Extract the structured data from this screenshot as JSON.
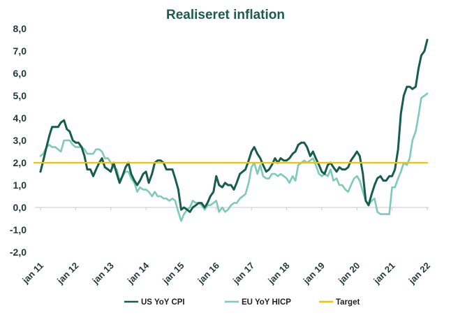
{
  "chart_data": {
    "type": "line",
    "title": "Realiseret inflation",
    "xlabel": "",
    "ylabel": "",
    "ylim": [
      -2.0,
      8.0
    ],
    "yticks": [
      "-2,0",
      "-1,0",
      "0,0",
      "1,0",
      "2,0",
      "3,0",
      "4,0",
      "5,0",
      "6,0",
      "7,0",
      "8,0"
    ],
    "xticks": [
      "jan 11",
      "jan 12",
      "jan 13",
      "jan 14",
      "jan 15",
      "jan 16",
      "jan 17",
      "jan 18",
      "jan 19",
      "jan 20",
      "jan 21",
      "jan 22"
    ],
    "xrange": [
      2011.0,
      2022.0
    ],
    "grid": false,
    "legend_position": "bottom",
    "series": [
      {
        "name": "US YoY CPI",
        "color": "#165c4f",
        "points": [
          [
            2011.0,
            1.6
          ],
          [
            2011.08,
            2.1
          ],
          [
            2011.17,
            2.7
          ],
          [
            2011.25,
            3.2
          ],
          [
            2011.33,
            3.6
          ],
          [
            2011.42,
            3.6
          ],
          [
            2011.5,
            3.6
          ],
          [
            2011.58,
            3.8
          ],
          [
            2011.67,
            3.9
          ],
          [
            2011.75,
            3.5
          ],
          [
            2011.83,
            3.4
          ],
          [
            2011.92,
            3.0
          ],
          [
            2012.0,
            2.9
          ],
          [
            2012.08,
            2.9
          ],
          [
            2012.17,
            2.7
          ],
          [
            2012.25,
            2.3
          ],
          [
            2012.33,
            1.7
          ],
          [
            2012.42,
            1.7
          ],
          [
            2012.5,
            1.4
          ],
          [
            2012.58,
            1.7
          ],
          [
            2012.67,
            2.0
          ],
          [
            2012.75,
            2.2
          ],
          [
            2012.83,
            1.8
          ],
          [
            2012.92,
            1.7
          ],
          [
            2013.0,
            1.6
          ],
          [
            2013.08,
            2.0
          ],
          [
            2013.17,
            1.5
          ],
          [
            2013.25,
            1.1
          ],
          [
            2013.33,
            1.4
          ],
          [
            2013.42,
            1.8
          ],
          [
            2013.5,
            2.0
          ],
          [
            2013.58,
            1.5
          ],
          [
            2013.67,
            1.2
          ],
          [
            2013.75,
            1.0
          ],
          [
            2013.83,
            1.2
          ],
          [
            2013.92,
            1.5
          ],
          [
            2014.0,
            1.6
          ],
          [
            2014.08,
            1.1
          ],
          [
            2014.17,
            1.5
          ],
          [
            2014.25,
            2.0
          ],
          [
            2014.33,
            2.1
          ],
          [
            2014.42,
            2.1
          ],
          [
            2014.5,
            2.0
          ],
          [
            2014.58,
            1.7
          ],
          [
            2014.67,
            1.7
          ],
          [
            2014.75,
            1.7
          ],
          [
            2014.83,
            1.3
          ],
          [
            2014.92,
            0.8
          ],
          [
            2015.0,
            -0.1
          ],
          [
            2015.08,
            0.0
          ],
          [
            2015.17,
            -0.1
          ],
          [
            2015.25,
            -0.2
          ],
          [
            2015.33,
            0.0
          ],
          [
            2015.42,
            0.1
          ],
          [
            2015.5,
            0.2
          ],
          [
            2015.58,
            0.2
          ],
          [
            2015.67,
            0.0
          ],
          [
            2015.75,
            0.2
          ],
          [
            2015.83,
            0.5
          ],
          [
            2015.92,
            0.7
          ],
          [
            2016.0,
            1.4
          ],
          [
            2016.08,
            1.0
          ],
          [
            2016.17,
            0.9
          ],
          [
            2016.25,
            1.1
          ],
          [
            2016.33,
            1.0
          ],
          [
            2016.42,
            1.0
          ],
          [
            2016.5,
            0.8
          ],
          [
            2016.58,
            1.1
          ],
          [
            2016.67,
            1.5
          ],
          [
            2016.75,
            1.6
          ],
          [
            2016.83,
            1.7
          ],
          [
            2016.92,
            2.1
          ],
          [
            2017.0,
            2.5
          ],
          [
            2017.08,
            2.7
          ],
          [
            2017.17,
            2.4
          ],
          [
            2017.25,
            2.2
          ],
          [
            2017.33,
            1.9
          ],
          [
            2017.42,
            1.6
          ],
          [
            2017.5,
            1.7
          ],
          [
            2017.58,
            1.9
          ],
          [
            2017.67,
            2.2
          ],
          [
            2017.75,
            2.0
          ],
          [
            2017.83,
            2.2
          ],
          [
            2017.92,
            2.1
          ],
          [
            2018.0,
            2.1
          ],
          [
            2018.08,
            2.2
          ],
          [
            2018.17,
            2.4
          ],
          [
            2018.25,
            2.5
          ],
          [
            2018.33,
            2.8
          ],
          [
            2018.42,
            2.9
          ],
          [
            2018.5,
            2.9
          ],
          [
            2018.58,
            2.7
          ],
          [
            2018.67,
            2.3
          ],
          [
            2018.75,
            2.5
          ],
          [
            2018.83,
            2.2
          ],
          [
            2018.92,
            1.9
          ],
          [
            2019.0,
            1.6
          ],
          [
            2019.08,
            1.5
          ],
          [
            2019.17,
            1.9
          ],
          [
            2019.25,
            2.0
          ],
          [
            2019.33,
            1.8
          ],
          [
            2019.42,
            1.6
          ],
          [
            2019.5,
            1.8
          ],
          [
            2019.58,
            1.7
          ],
          [
            2019.67,
            1.7
          ],
          [
            2019.75,
            1.8
          ],
          [
            2019.83,
            2.1
          ],
          [
            2019.92,
            2.3
          ],
          [
            2020.0,
            2.5
          ],
          [
            2020.08,
            2.3
          ],
          [
            2020.17,
            1.5
          ],
          [
            2020.25,
            0.3
          ],
          [
            2020.33,
            0.1
          ],
          [
            2020.42,
            0.6
          ],
          [
            2020.5,
            1.0
          ],
          [
            2020.58,
            1.3
          ],
          [
            2020.67,
            1.4
          ],
          [
            2020.75,
            1.2
          ],
          [
            2020.83,
            1.2
          ],
          [
            2020.92,
            1.4
          ],
          [
            2021.0,
            1.4
          ],
          [
            2021.08,
            1.7
          ],
          [
            2021.17,
            2.6
          ],
          [
            2021.25,
            4.2
          ],
          [
            2021.33,
            5.0
          ],
          [
            2021.42,
            5.4
          ],
          [
            2021.5,
            5.4
          ],
          [
            2021.58,
            5.3
          ],
          [
            2021.67,
            5.4
          ],
          [
            2021.75,
            6.2
          ],
          [
            2021.83,
            6.8
          ],
          [
            2021.92,
            7.0
          ],
          [
            2022.0,
            7.5
          ]
        ]
      },
      {
        "name": "EU YoY HICP",
        "color": "#7ccbb6",
        "points": [
          [
            2011.0,
            2.3
          ],
          [
            2011.08,
            2.4
          ],
          [
            2011.17,
            2.7
          ],
          [
            2011.25,
            2.8
          ],
          [
            2011.33,
            2.7
          ],
          [
            2011.42,
            2.7
          ],
          [
            2011.5,
            2.6
          ],
          [
            2011.58,
            2.5
          ],
          [
            2011.67,
            3.0
          ],
          [
            2011.75,
            3.0
          ],
          [
            2011.83,
            3.0
          ],
          [
            2011.92,
            2.8
          ],
          [
            2012.0,
            2.7
          ],
          [
            2012.08,
            2.7
          ],
          [
            2012.17,
            2.7
          ],
          [
            2012.25,
            2.6
          ],
          [
            2012.33,
            2.4
          ],
          [
            2012.42,
            2.4
          ],
          [
            2012.5,
            2.4
          ],
          [
            2012.58,
            2.6
          ],
          [
            2012.67,
            2.6
          ],
          [
            2012.75,
            2.5
          ],
          [
            2012.83,
            2.2
          ],
          [
            2012.92,
            2.2
          ],
          [
            2013.0,
            2.0
          ],
          [
            2013.08,
            1.8
          ],
          [
            2013.17,
            1.7
          ],
          [
            2013.25,
            1.2
          ],
          [
            2013.33,
            1.4
          ],
          [
            2013.42,
            1.6
          ],
          [
            2013.5,
            1.6
          ],
          [
            2013.58,
            1.3
          ],
          [
            2013.67,
            1.1
          ],
          [
            2013.75,
            0.7
          ],
          [
            2013.83,
            0.9
          ],
          [
            2013.92,
            0.8
          ],
          [
            2014.0,
            0.8
          ],
          [
            2014.08,
            0.7
          ],
          [
            2014.17,
            0.5
          ],
          [
            2014.25,
            0.7
          ],
          [
            2014.33,
            0.5
          ],
          [
            2014.42,
            0.5
          ],
          [
            2014.5,
            0.4
          ],
          [
            2014.58,
            0.4
          ],
          [
            2014.67,
            0.3
          ],
          [
            2014.75,
            0.4
          ],
          [
            2014.83,
            0.3
          ],
          [
            2014.92,
            -0.2
          ],
          [
            2015.0,
            -0.6
          ],
          [
            2015.08,
            -0.3
          ],
          [
            2015.17,
            -0.1
          ],
          [
            2015.25,
            0.0
          ],
          [
            2015.33,
            0.3
          ],
          [
            2015.42,
            0.2
          ],
          [
            2015.5,
            0.2
          ],
          [
            2015.58,
            0.1
          ],
          [
            2015.67,
            -0.1
          ],
          [
            2015.75,
            0.1
          ],
          [
            2015.83,
            0.1
          ],
          [
            2015.92,
            0.2
          ],
          [
            2016.0,
            0.3
          ],
          [
            2016.08,
            -0.2
          ],
          [
            2016.17,
            0.0
          ],
          [
            2016.25,
            -0.2
          ],
          [
            2016.33,
            -0.1
          ],
          [
            2016.42,
            0.1
          ],
          [
            2016.5,
            0.2
          ],
          [
            2016.58,
            0.2
          ],
          [
            2016.67,
            0.4
          ],
          [
            2016.75,
            0.5
          ],
          [
            2016.83,
            0.6
          ],
          [
            2016.92,
            1.1
          ],
          [
            2017.0,
            1.8
          ],
          [
            2017.08,
            2.0
          ],
          [
            2017.17,
            1.5
          ],
          [
            2017.25,
            1.9
          ],
          [
            2017.33,
            1.4
          ],
          [
            2017.42,
            1.3
          ],
          [
            2017.5,
            1.3
          ],
          [
            2017.58,
            1.5
          ],
          [
            2017.67,
            1.5
          ],
          [
            2017.75,
            1.4
          ],
          [
            2017.83,
            1.5
          ],
          [
            2017.92,
            1.4
          ],
          [
            2018.0,
            1.3
          ],
          [
            2018.08,
            1.1
          ],
          [
            2018.17,
            1.4
          ],
          [
            2018.25,
            1.2
          ],
          [
            2018.33,
            1.9
          ],
          [
            2018.42,
            2.0
          ],
          [
            2018.5,
            2.1
          ],
          [
            2018.58,
            2.0
          ],
          [
            2018.67,
            2.1
          ],
          [
            2018.75,
            2.2
          ],
          [
            2018.83,
            1.9
          ],
          [
            2018.92,
            1.5
          ],
          [
            2019.0,
            1.4
          ],
          [
            2019.08,
            1.5
          ],
          [
            2019.17,
            1.4
          ],
          [
            2019.25,
            1.7
          ],
          [
            2019.33,
            1.2
          ],
          [
            2019.42,
            1.3
          ],
          [
            2019.5,
            1.0
          ],
          [
            2019.58,
            1.0
          ],
          [
            2019.67,
            0.8
          ],
          [
            2019.75,
            0.7
          ],
          [
            2019.83,
            1.0
          ],
          [
            2019.92,
            1.3
          ],
          [
            2020.0,
            1.4
          ],
          [
            2020.08,
            1.2
          ],
          [
            2020.17,
            0.7
          ],
          [
            2020.25,
            0.3
          ],
          [
            2020.33,
            0.1
          ],
          [
            2020.42,
            0.3
          ],
          [
            2020.5,
            0.4
          ],
          [
            2020.58,
            -0.2
          ],
          [
            2020.67,
            -0.3
          ],
          [
            2020.75,
            -0.3
          ],
          [
            2020.83,
            -0.3
          ],
          [
            2020.92,
            -0.3
          ],
          [
            2021.0,
            0.9
          ],
          [
            2021.08,
            0.9
          ],
          [
            2021.17,
            1.3
          ],
          [
            2021.25,
            1.6
          ],
          [
            2021.33,
            2.0
          ],
          [
            2021.42,
            1.9
          ],
          [
            2021.5,
            2.2
          ],
          [
            2021.58,
            3.0
          ],
          [
            2021.67,
            3.4
          ],
          [
            2021.75,
            4.1
          ],
          [
            2021.83,
            4.9
          ],
          [
            2021.92,
            5.0
          ],
          [
            2022.0,
            5.1
          ]
        ]
      },
      {
        "name": "Target",
        "color": "#f5c200",
        "points": [
          [
            2010.82,
            2.0
          ],
          [
            2022.0,
            2.0
          ]
        ]
      }
    ]
  }
}
